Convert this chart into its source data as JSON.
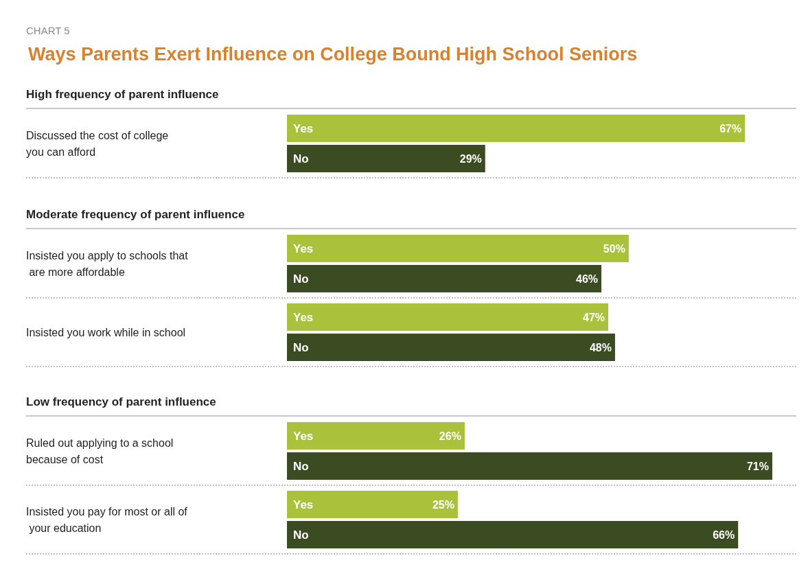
{
  "chart_data": {
    "type": "bar",
    "orientation": "horizontal",
    "title": "Ways Parents Exert Influence on College Bound High School Seniors",
    "annotations": [
      "CHART 5",
      "High frequency of parent influence",
      "Moderate frequency of parent influence",
      "Low frequency of parent influence"
    ],
    "categories": [
      "Discussed the cost of college you can afford",
      "Insisted you apply to schools that are more affordable",
      "Insisted you work while in school",
      "Ruled out applying to a school because of cost",
      "Insisted you pay for most or all of your education"
    ],
    "series": [
      {
        "name": "Yes",
        "color": "#aac23b",
        "values": [
          67,
          50,
          47,
          26,
          25
        ],
        "value_labels": [
          "67%",
          "50%",
          "47%",
          "26%",
          "25%"
        ]
      },
      {
        "name": "No",
        "color": "#3c4c22",
        "values": [
          29,
          46,
          48,
          71,
          66
        ],
        "value_labels": [
          "29%",
          "46%",
          "48%",
          "71%",
          "66%"
        ]
      }
    ],
    "legend": false
  }
}
